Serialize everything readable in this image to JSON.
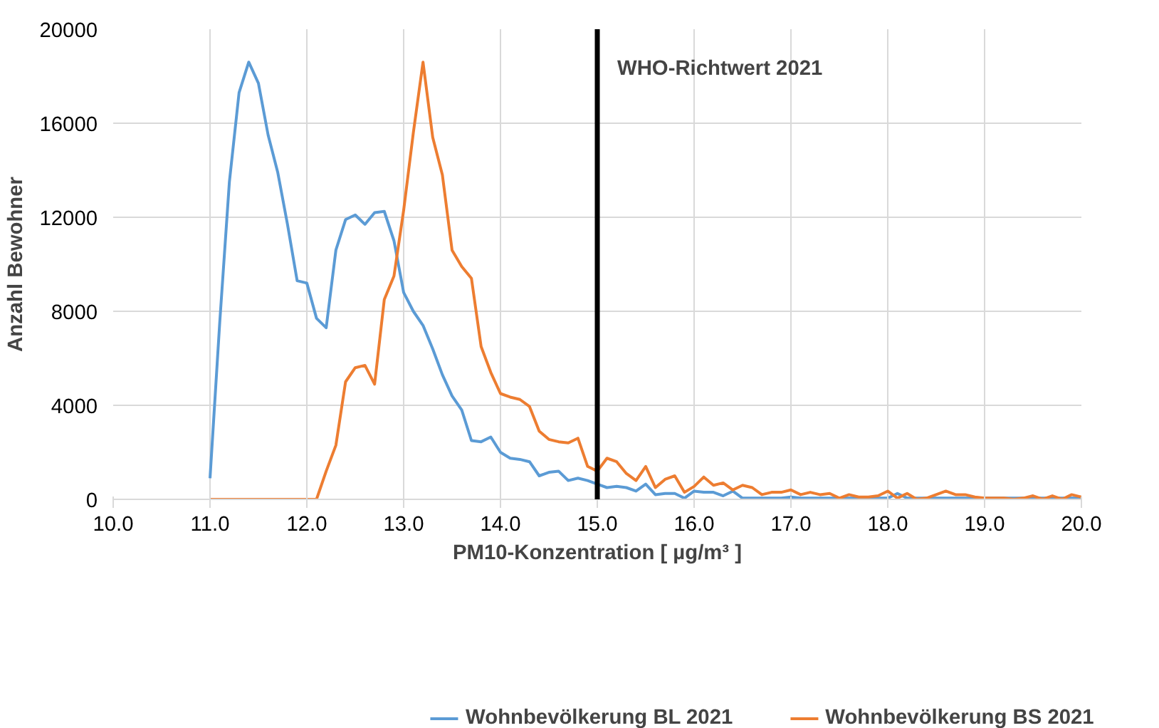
{
  "chart_data": {
    "type": "line",
    "xlabel": "PM10-Konzentration [ µg/m³ ]",
    "ylabel": "Anzahl Bewohner",
    "x": [
      11.0,
      11.1,
      11.2,
      11.3,
      11.4,
      11.5,
      11.6,
      11.7,
      11.8,
      11.9,
      12.0,
      12.1,
      12.2,
      12.3,
      12.4,
      12.5,
      12.6,
      12.7,
      12.8,
      12.9,
      13.0,
      13.1,
      13.2,
      13.3,
      13.4,
      13.5,
      13.6,
      13.7,
      13.8,
      13.9,
      14.0,
      14.1,
      14.2,
      14.3,
      14.4,
      14.5,
      14.6,
      14.7,
      14.8,
      14.9,
      15.0,
      15.1,
      15.2,
      15.3,
      15.4,
      15.5,
      15.6,
      15.7,
      15.8,
      15.9,
      16.0,
      16.1,
      16.2,
      16.3,
      16.4,
      16.5,
      16.6,
      16.7,
      16.8,
      16.9,
      17.0,
      17.1,
      17.2,
      17.3,
      17.4,
      17.5,
      17.6,
      17.7,
      17.8,
      17.9,
      18.0,
      18.1,
      18.2,
      18.3,
      18.4,
      18.5,
      18.6,
      18.7,
      18.8,
      18.9,
      19.0,
      19.1,
      19.2,
      19.3,
      19.4,
      19.5,
      19.6,
      19.7,
      19.8,
      19.9,
      20.0
    ],
    "series": [
      {
        "name": "Wohnbevölkerung BL 2021",
        "color": "#5b9bd5",
        "values": [
          900,
          7500,
          13500,
          17300,
          18600,
          17700,
          15500,
          13900,
          11700,
          9300,
          9200,
          7700,
          7300,
          10600,
          11900,
          12100,
          11700,
          12200,
          12250,
          11000,
          8800,
          8000,
          7400,
          6400,
          5300,
          4400,
          3800,
          2500,
          2450,
          2650,
          2000,
          1750,
          1700,
          1600,
          1000,
          1150,
          1200,
          800,
          900,
          800,
          650,
          500,
          550,
          500,
          350,
          650,
          200,
          250,
          250,
          50,
          350,
          300,
          300,
          150,
          350,
          50,
          50,
          50,
          50,
          50,
          100,
          50,
          50,
          50,
          50,
          50,
          50,
          50,
          50,
          50,
          50,
          250,
          50,
          50,
          50,
          50,
          50,
          50,
          50,
          50,
          50,
          50,
          50,
          50,
          50,
          50,
          50,
          50,
          50,
          50,
          50
        ]
      },
      {
        "name": "Wohnbevölkerung BS 2021",
        "color": "#ed7d31",
        "values": [
          0,
          0,
          0,
          0,
          0,
          0,
          0,
          0,
          0,
          0,
          0,
          0,
          1200,
          2300,
          5000,
          5600,
          5700,
          4900,
          8500,
          9500,
          12300,
          15600,
          18600,
          15400,
          13800,
          10600,
          9900,
          9400,
          6500,
          5400,
          4500,
          4350,
          4250,
          3950,
          2900,
          2550,
          2450,
          2400,
          2600,
          1400,
          1200,
          1750,
          1600,
          1100,
          800,
          1400,
          500,
          850,
          1000,
          300,
          550,
          950,
          600,
          700,
          400,
          600,
          500,
          200,
          300,
          300,
          400,
          200,
          300,
          200,
          250,
          50,
          200,
          100,
          100,
          150,
          350,
          50,
          250,
          0,
          50,
          200,
          350,
          200,
          200,
          100,
          50,
          50,
          50,
          0,
          50,
          150,
          0,
          150,
          0,
          200,
          100
        ]
      }
    ],
    "xlim": [
      10,
      20
    ],
    "xticks": [
      {
        "value": 10,
        "label": "10.0"
      },
      {
        "value": 11,
        "label": "11.0"
      },
      {
        "value": 12,
        "label": "12.0"
      },
      {
        "value": 13,
        "label": "13.0"
      },
      {
        "value": 14,
        "label": "14.0"
      },
      {
        "value": 15,
        "label": "15.0"
      },
      {
        "value": 16,
        "label": "16.0"
      },
      {
        "value": 17,
        "label": "17.0"
      },
      {
        "value": 18,
        "label": "18.0"
      },
      {
        "value": 19,
        "label": "19.0"
      },
      {
        "value": 20,
        "label": "20.0"
      }
    ],
    "ylim": [
      0,
      20000
    ],
    "yticks": [
      0,
      4000,
      8000,
      12000,
      16000,
      20000
    ],
    "ref_lines": [
      {
        "axis": "x",
        "value": 15,
        "label": "WHO-Richtwert 2021",
        "color": "#000000"
      }
    ],
    "grid": true,
    "legend": "bottom",
    "marker": "none",
    "line_style": "solid"
  }
}
